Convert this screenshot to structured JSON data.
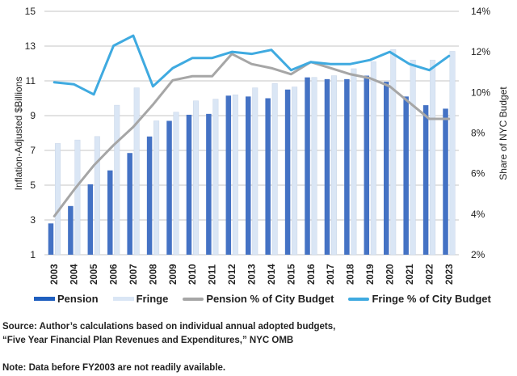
{
  "chart_data": {
    "type": "bar+line",
    "title": "",
    "categories": [
      "2003",
      "2004",
      "2005",
      "2006",
      "2007",
      "2008",
      "2009",
      "2010",
      "2011",
      "2012",
      "2013",
      "2014",
      "2015",
      "2016",
      "2017",
      "2018",
      "2019",
      "2020",
      "2021",
      "2022",
      "2023"
    ],
    "left_axis": {
      "label": "Inflation-Adjusted $Billions",
      "range": [
        1,
        15
      ],
      "ticks": [
        1,
        3,
        5,
        7,
        9,
        11,
        13,
        15
      ],
      "tick_labels": [
        "1",
        "3",
        "5",
        "7",
        "9",
        "11",
        "13",
        "15"
      ]
    },
    "right_axis": {
      "label": "Share of NYC Budget",
      "range": [
        2,
        14
      ],
      "ticks": [
        2,
        4,
        6,
        8,
        10,
        12,
        14
      ],
      "tick_labels": [
        "2%",
        "4%",
        "6%",
        "8%",
        "10%",
        "12%",
        "14%"
      ]
    },
    "grid": true,
    "series": [
      {
        "name": "Pension",
        "type": "bar",
        "axis": "left",
        "color": "#4472C4",
        "values": [
          2.8,
          3.8,
          5.05,
          5.85,
          6.85,
          7.8,
          8.7,
          9.05,
          9.1,
          10.15,
          10.1,
          10.0,
          10.5,
          11.2,
          11.1,
          11.1,
          11.3,
          10.95,
          10.1,
          9.6,
          9.4
        ]
      },
      {
        "name": "Fringe",
        "type": "bar",
        "axis": "left",
        "color": "#DAE6F5",
        "values": [
          7.4,
          7.6,
          7.8,
          9.6,
          10.6,
          8.7,
          9.2,
          9.85,
          9.95,
          10.2,
          10.6,
          10.85,
          10.65,
          11.2,
          11.3,
          11.7,
          12.1,
          12.8,
          12.2,
          12.2,
          12.7
        ]
      },
      {
        "name": "Pension % of City Budget",
        "type": "line",
        "axis": "right",
        "color": "#A6A6A6",
        "values": [
          3.9,
          5.2,
          6.4,
          7.4,
          8.3,
          9.4,
          10.6,
          10.8,
          10.8,
          11.9,
          11.4,
          11.2,
          10.9,
          11.5,
          11.2,
          10.9,
          10.7,
          10.3,
          9.5,
          8.7,
          8.7
        ]
      },
      {
        "name": "Fringe % of City Budget",
        "type": "line",
        "axis": "right",
        "color": "#3FAAE0",
        "values": [
          10.5,
          10.4,
          9.9,
          12.3,
          12.8,
          10.3,
          11.2,
          11.7,
          11.7,
          12.0,
          11.9,
          12.1,
          11.1,
          11.5,
          11.4,
          11.4,
          11.6,
          12.0,
          11.4,
          11.1,
          11.8
        ]
      }
    ],
    "legend_position": "bottom"
  },
  "legend": [
    {
      "label": "Pension",
      "color": "#4472C4",
      "kind": "bar"
    },
    {
      "label": "Fringe",
      "color": "#DAE6F5",
      "kind": "bar"
    },
    {
      "label": "Pension % of City Budget",
      "color": "#A6A6A6",
      "kind": "line"
    },
    {
      "label": "Fringe % of City Budget",
      "color": "#3FAAE0",
      "kind": "line"
    }
  ],
  "notes": {
    "source_line1": "Source: Author’s calculations based on individual annual adopted budgets,",
    "source_line2": "“Five Year Financial Plan Revenues and Expenditures,” NYC OMB",
    "note": "Note: Data before FY2003 are not readily available."
  }
}
